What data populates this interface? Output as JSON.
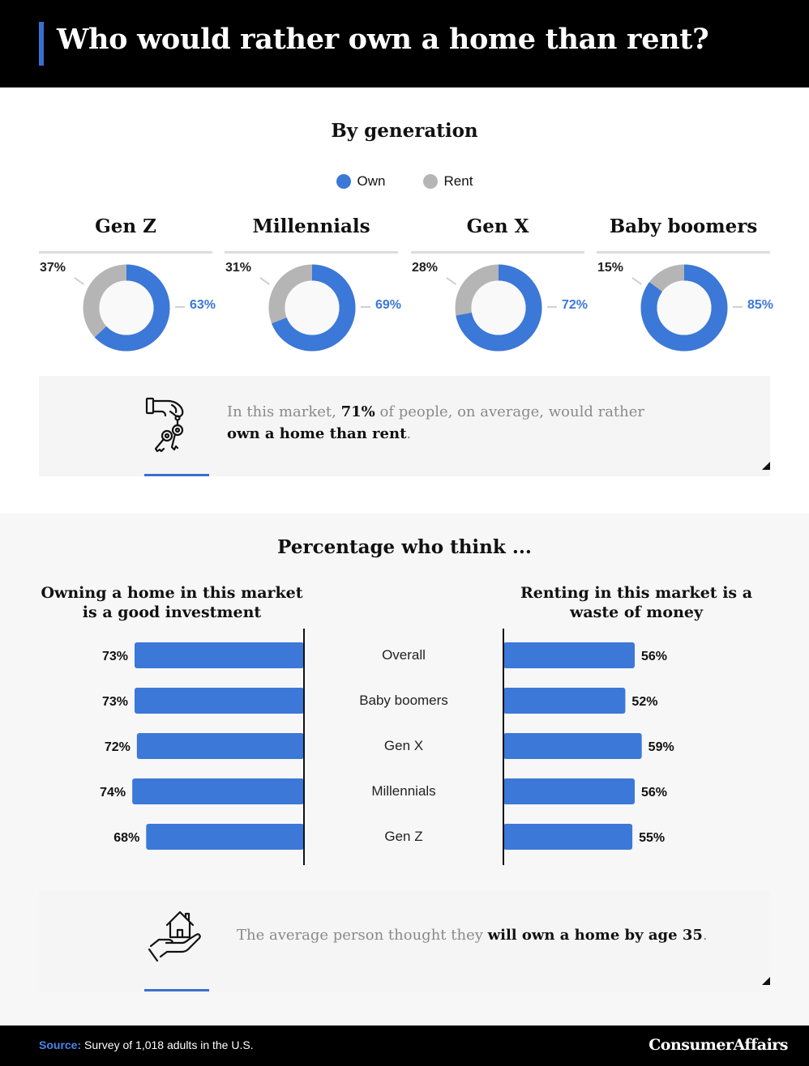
{
  "title": "Who would rather own a home than rent?",
  "colors": {
    "own": "#3b78d8",
    "rent": "#b5b5b5",
    "accent": "#3b6fcf",
    "donut_hole": "#f9f9f9"
  },
  "section1": {
    "title": "By generation",
    "legend": [
      {
        "label": "Own"
      },
      {
        "label": "Rent"
      }
    ]
  },
  "callout1": {
    "icon": "hand-keys-icon",
    "pre": "In this market, ",
    "highlight": "71%",
    "mid": " of people, on average, would rather ",
    "bold_end": "own a home than rent",
    "post": "."
  },
  "section2": {
    "title": "Percentage who think ...",
    "left_title": "Owning a home in this market is a good investment",
    "right_title": "Renting in this market is a waste of money"
  },
  "callout2": {
    "icon": "hand-house-icon",
    "pre": "The average person thought they ",
    "bold": "will own a home by age 35",
    "post": "."
  },
  "footer": {
    "source_label": "Source:",
    "source_text": " Survey of 1,018 adults in the U.S.",
    "brand": "ConsumerAffairs"
  },
  "chart_data": [
    {
      "type": "pie",
      "variant": "donut",
      "title": "By generation",
      "legend": [
        "Own",
        "Rent"
      ],
      "legend_position": "top",
      "groups": [
        {
          "name": "Gen Z",
          "own": 63,
          "rent": 37,
          "own_label": "63%",
          "rent_label": "37%"
        },
        {
          "name": "Millennials",
          "own": 69,
          "rent": 31,
          "own_label": "69%",
          "rent_label": "31%"
        },
        {
          "name": "Gen X",
          "own": 72,
          "rent": 28,
          "own_label": "72%",
          "rent_label": "28%"
        },
        {
          "name": "Baby boomers",
          "own": 85,
          "rent": 15,
          "own_label": "85%",
          "rent_label": "15%"
        }
      ]
    },
    {
      "type": "bar",
      "orientation": "horizontal",
      "title": "Percentage who think ...",
      "categories": [
        "Overall",
        "Baby boomers",
        "Gen X",
        "Millennials",
        "Gen Z"
      ],
      "series": [
        {
          "name": "Owning a home in this market is a good investment",
          "values": [
            73,
            73,
            72,
            74,
            68
          ],
          "labels": [
            "73%",
            "73%",
            "72%",
            "74%",
            "68%"
          ]
        },
        {
          "name": "Renting in this market is a waste of money",
          "values": [
            56,
            52,
            59,
            56,
            55
          ],
          "labels": [
            "56%",
            "52%",
            "59%",
            "56%",
            "55%"
          ]
        }
      ],
      "grid": false
    }
  ]
}
